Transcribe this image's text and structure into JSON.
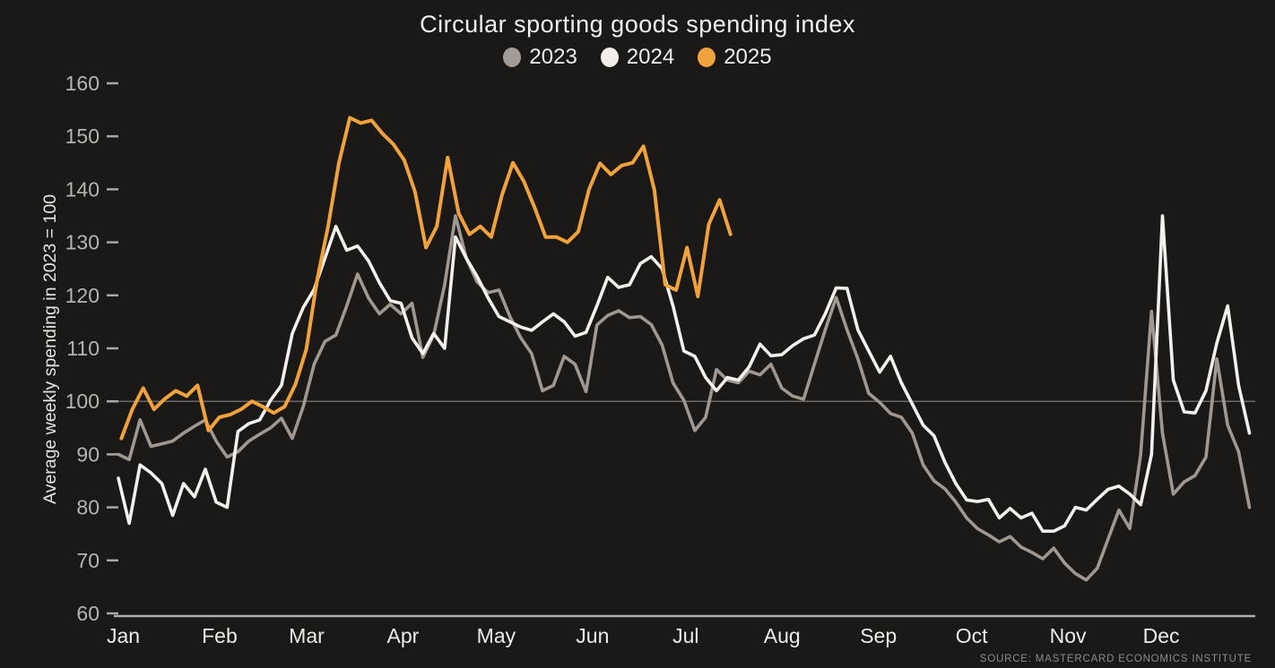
{
  "page": {
    "background": "#1b1918"
  },
  "header": {
    "title": "Circular sporting goods spending index"
  },
  "footer": {
    "source": "SOURCE: MASTERCARD ECONOMICS INSTITUTE"
  },
  "chart_data": {
    "type": "line",
    "title": "Circular sporting goods spending index",
    "xlabel": "",
    "ylabel": "Average weekly spending in 2023 = 100",
    "ylim": [
      60,
      160
    ],
    "yticks": [
      60,
      70,
      80,
      90,
      100,
      110,
      120,
      130,
      140,
      150,
      160
    ],
    "baseline_value": 100,
    "grid": "single horizontal reference line at 100 only",
    "legend_position": "top-center",
    "xtick_labels": [
      "Jan",
      "Feb",
      "Mar",
      "Apr",
      "May",
      "Jun",
      "Jul",
      "Aug",
      "Sep",
      "Oct",
      "Nov",
      "Dec"
    ],
    "month_start_days": [
      0,
      31,
      59,
      90,
      120,
      151,
      181,
      212,
      243,
      273,
      304,
      334
    ],
    "x_axis_span_days": 365,
    "colors": {
      "2023": "#a09890",
      "2024": "#f3f0eb",
      "2025": "#f1a23b"
    },
    "series": [
      {
        "name": "2023",
        "color": "#a09890",
        "start_day": 1,
        "step_days": 3.5,
        "values": [
          90,
          89,
          96.5,
          91.5,
          92,
          92.5,
          94,
          95.3,
          96.5,
          92.5,
          89.5,
          90.5,
          92.5,
          93.8,
          95,
          96.8,
          93,
          99,
          107,
          111.3,
          112.5,
          118,
          124,
          119.5,
          116.5,
          118.3,
          116.5,
          118.5,
          108.3,
          112.5,
          122,
          135,
          127,
          122.5,
          120.5,
          121,
          116,
          112,
          109,
          102,
          103,
          108.5,
          107,
          101.8,
          114.4,
          116.2,
          117.1,
          115.8,
          116,
          114.5,
          110.6,
          103.5,
          100.2,
          94.5,
          97,
          106,
          104,
          103.5,
          105.7,
          105,
          107,
          102.5,
          101,
          100.4,
          107,
          113.5,
          119.6,
          113.5,
          108,
          101.5,
          99.8,
          97.7,
          97,
          94,
          88,
          85,
          83.5,
          81,
          78,
          76,
          74.8,
          73.5,
          74.5,
          72.5,
          71.5,
          70.3,
          72.3,
          69.5,
          67.5,
          66.3,
          68.5,
          74,
          79.5,
          76,
          90,
          117,
          94,
          82.5,
          84.8,
          86,
          89.5,
          108,
          95.5,
          90.5,
          80
        ]
      },
      {
        "name": "2024",
        "color": "#f3f0eb",
        "start_day": 1,
        "step_days": 3.5,
        "values": [
          85.5,
          77,
          88,
          86.5,
          84.5,
          78.5,
          84.5,
          82,
          87.2,
          81,
          80,
          94.3,
          95.8,
          96.5,
          100.2,
          103,
          112.8,
          117.7,
          121.1,
          127,
          133,
          128.5,
          129.3,
          126.5,
          122.4,
          119,
          118.5,
          112,
          109,
          112.8,
          110,
          131,
          127,
          123.5,
          119.5,
          116,
          115,
          114,
          113.4,
          115,
          116.5,
          115,
          112.3,
          113,
          118,
          123.4,
          121.5,
          122,
          126,
          127.3,
          125,
          118,
          109.5,
          108.5,
          104.5,
          102,
          104.5,
          104,
          106.5,
          110.8,
          108.6,
          108.8,
          110.5,
          111.8,
          112.5,
          116.5,
          121.4,
          121.3,
          113.5,
          109.5,
          105.5,
          108.5,
          103.5,
          99.5,
          95.5,
          93.5,
          88.5,
          84.5,
          81.4,
          81.1,
          81.5,
          78,
          79.8,
          78,
          78.9,
          75.5,
          75.5,
          76.5,
          80,
          79.5,
          81.5,
          83.4,
          84,
          82.5,
          80.5,
          90,
          135,
          104,
          98,
          97.8,
          102,
          111,
          118,
          103,
          94
        ]
      },
      {
        "name": "2025",
        "color": "#f1a23b",
        "start_day": 2,
        "step_days": 3.5,
        "values": [
          93,
          98.5,
          102.5,
          98.5,
          100.5,
          102,
          101,
          103,
          94.5,
          97,
          97.5,
          98.5,
          100,
          99,
          97.8,
          99,
          103.2,
          109.8,
          123,
          133,
          145,
          153.5,
          152.5,
          153,
          150.5,
          148.5,
          145.5,
          139.5,
          129,
          133,
          146,
          135.5,
          131.5,
          133,
          131,
          139,
          145,
          141.5,
          136.5,
          131,
          131,
          130,
          132,
          140,
          144.9,
          142.8,
          144.5,
          145,
          148.1,
          139.9,
          122,
          121,
          129,
          119.8,
          133.4,
          138,
          131.5
        ]
      }
    ]
  },
  "legend": {
    "items": [
      {
        "label": "2023",
        "color": "#a39b96"
      },
      {
        "label": "2024",
        "color": "#f2efea"
      },
      {
        "label": "2025",
        "color": "#f0a23c"
      }
    ]
  }
}
